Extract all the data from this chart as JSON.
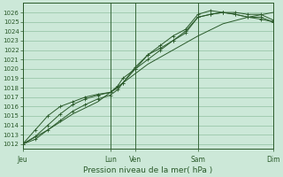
{
  "xlabel": "Pression niveau de la mer( hPa )",
  "bg_color": "#cce8d8",
  "grid_color": "#90c0a0",
  "line_color": "#2a5a2a",
  "ylim": [
    1011.5,
    1027.0
  ],
  "yticks": [
    1012,
    1013,
    1014,
    1015,
    1016,
    1017,
    1018,
    1019,
    1020,
    1021,
    1022,
    1023,
    1024,
    1025,
    1026
  ],
  "xtick_labels": [
    "Jeu",
    "Lun",
    "Ven",
    "Sam",
    "Dim"
  ],
  "xtick_positions": [
    0.0,
    3.5,
    4.5,
    7.0,
    10.0
  ],
  "vlines": [
    0.0,
    3.5,
    4.5,
    7.0,
    10.0
  ],
  "x_total": 10.0,
  "series": [
    {
      "x": [
        0.0,
        0.5,
        1.0,
        1.5,
        2.0,
        2.5,
        3.0,
        3.5,
        3.8,
        4.0,
        4.5,
        5.0,
        5.5,
        6.0,
        6.5,
        7.0,
        7.5,
        8.0,
        8.5,
        9.0,
        9.5,
        10.0
      ],
      "y": [
        1012.0,
        1012.8,
        1014.0,
        1015.2,
        1016.2,
        1016.8,
        1017.2,
        1017.5,
        1018.0,
        1018.5,
        1020.2,
        1021.5,
        1022.2,
        1023.0,
        1023.8,
        1025.5,
        1025.8,
        1026.0,
        1026.0,
        1025.8,
        1025.8,
        1025.2
      ]
    },
    {
      "x": [
        0.0,
        0.5,
        1.0,
        1.5,
        2.0,
        2.5,
        3.0,
        3.5,
        3.8,
        4.0,
        4.5,
        5.0,
        5.5,
        6.0,
        6.5,
        7.0,
        7.5,
        8.0,
        8.5,
        9.0,
        9.5,
        10.0
      ],
      "y": [
        1012.0,
        1013.5,
        1015.0,
        1016.0,
        1016.5,
        1017.0,
        1017.3,
        1017.5,
        1018.2,
        1019.0,
        1020.0,
        1021.5,
        1022.5,
        1023.5,
        1024.2,
        1025.8,
        1026.2,
        1026.0,
        1025.8,
        1025.5,
        1025.5,
        1025.0
      ]
    },
    {
      "x": [
        0.0,
        0.5,
        1.0,
        1.5,
        2.0,
        2.5,
        3.0,
        3.5,
        3.8,
        4.0,
        4.5,
        5.0,
        5.5,
        6.0,
        6.5,
        7.0,
        7.5,
        8.0,
        8.5,
        9.0,
        9.5,
        10.0
      ],
      "y": [
        1012.0,
        1012.5,
        1013.5,
        1014.5,
        1015.5,
        1016.2,
        1016.8,
        1017.2,
        1017.8,
        1018.5,
        1020.0,
        1021.0,
        1022.0,
        1023.0,
        1024.0,
        1025.5,
        1025.8,
        1026.0,
        1025.8,
        1025.5,
        1025.3,
        1025.0
      ]
    },
    {
      "x": [
        0.0,
        1.0,
        2.0,
        3.0,
        4.0,
        5.0,
        6.0,
        7.0,
        8.0,
        9.0,
        10.0
      ],
      "y": [
        1012.0,
        1013.5,
        1015.2,
        1016.5,
        1018.5,
        1020.5,
        1022.0,
        1023.5,
        1024.8,
        1025.5,
        1026.0
      ]
    }
  ]
}
